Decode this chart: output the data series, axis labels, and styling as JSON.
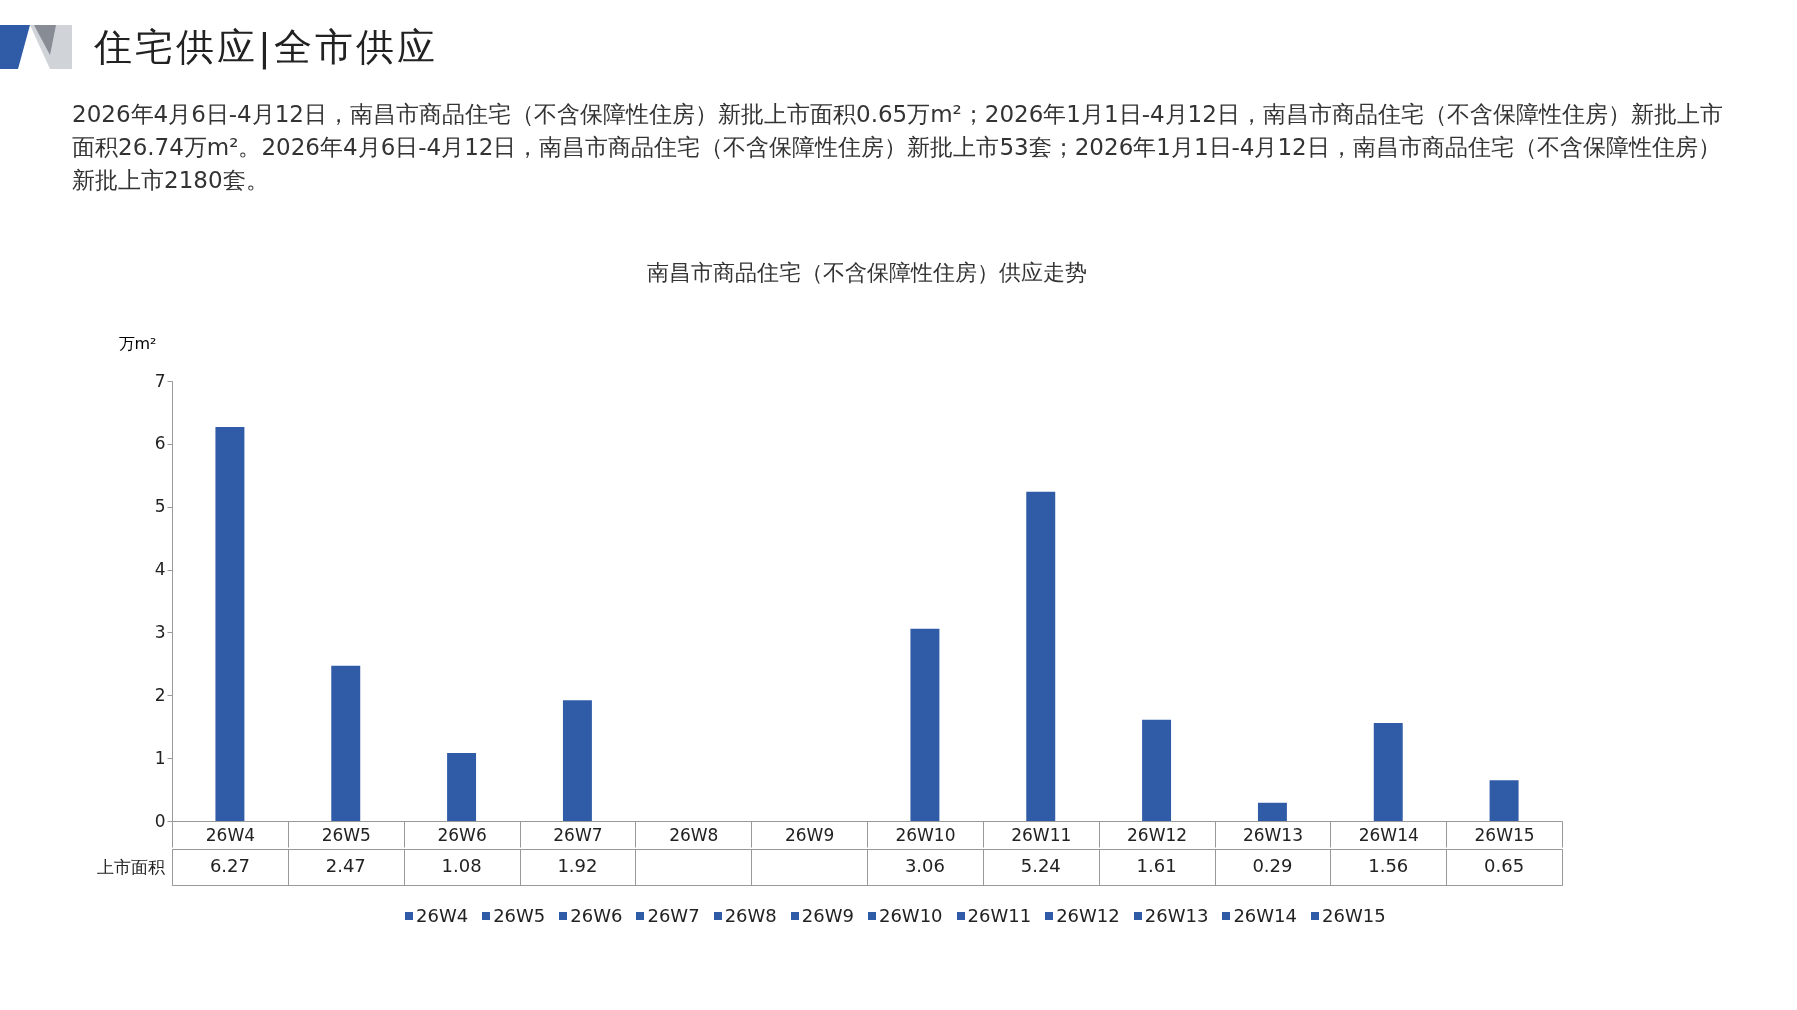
{
  "chart_data": {
    "type": "bar",
    "title": "南昌市商品住宅（不含保障性住房）供应走势",
    "annotations": [
      "住宅供应|全市供应",
      "2026年4月6日-4月12日，南昌市商品住宅（不含保障性住房）新批上市面积0.65万m²；2026年1月1日-4月12日，南昌市商品住宅（不含保障性住房）新批上市面积26.74万m²。2026年4月6日-4月12日，南昌市商品住宅（不含保障性住房）新批上市53套；2026年1月1日-4月12日，南昌市商品住宅（不含保障性住房）新批上市2180套。",
      "上市面积"
    ],
    "ylabel": "万m²",
    "categories": [
      "26W4",
      "26W5",
      "26W6",
      "26W7",
      "26W8",
      "26W9",
      "26W10",
      "26W11",
      "26W12",
      "26W13",
      "26W14",
      "26W15"
    ],
    "values": [
      6.27,
      2.47,
      1.08,
      1.92,
      null,
      null,
      3.06,
      5.24,
      1.61,
      0.29,
      1.56,
      0.65
    ],
    "colors": [
      "#2f5ba7",
      "#2f5ba7",
      "#2f5ba7",
      "#2f5ba7",
      "#2f5ba7",
      "#2f5ba7",
      "#2f5ba7",
      "#2f5ba7",
      "#2f5ba7",
      "#2f5ba7",
      "#2f5ba7",
      "#2f5ba7"
    ],
    "ylim": [
      0,
      7
    ],
    "yticks": [
      0,
      1,
      2,
      3,
      4,
      5,
      6,
      7
    ],
    "data_labels": true,
    "grid": false
  }
}
